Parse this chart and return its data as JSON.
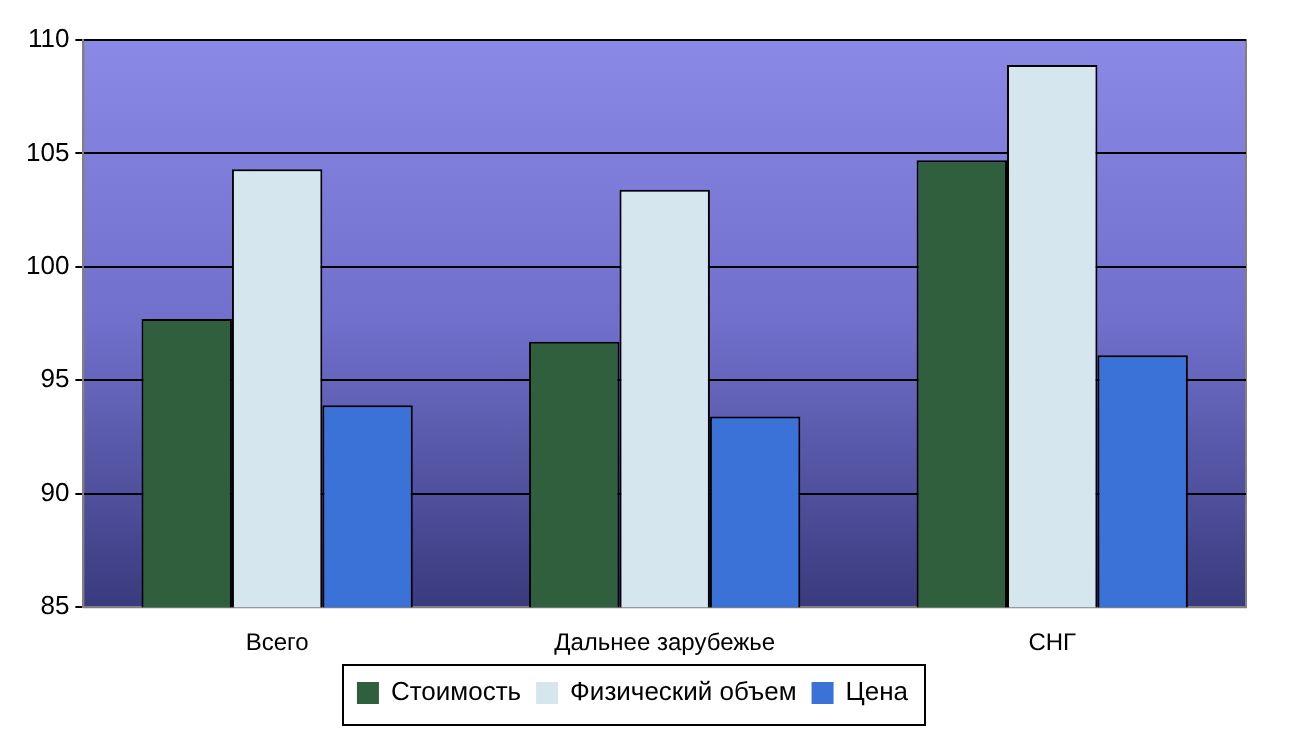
{
  "chart_data": {
    "type": "bar",
    "categories": [
      "Всего",
      "Дальнее зарубежье",
      "СНГ"
    ],
    "series": [
      {
        "name": "Стоимость",
        "color": "#2f5f3c",
        "values": [
          97.7,
          96.7,
          104.7
        ]
      },
      {
        "name": "Физический объем",
        "color": "#d6e6ee",
        "values": [
          104.3,
          103.4,
          108.9
        ]
      },
      {
        "name": "Цена",
        "color": "#3a72d8",
        "values": [
          93.9,
          93.4,
          96.1
        ]
      }
    ],
    "ylim": [
      85,
      110
    ],
    "yticks": [
      85,
      90,
      95,
      100,
      105,
      110
    ],
    "grid": "y",
    "legend": "bottom"
  }
}
